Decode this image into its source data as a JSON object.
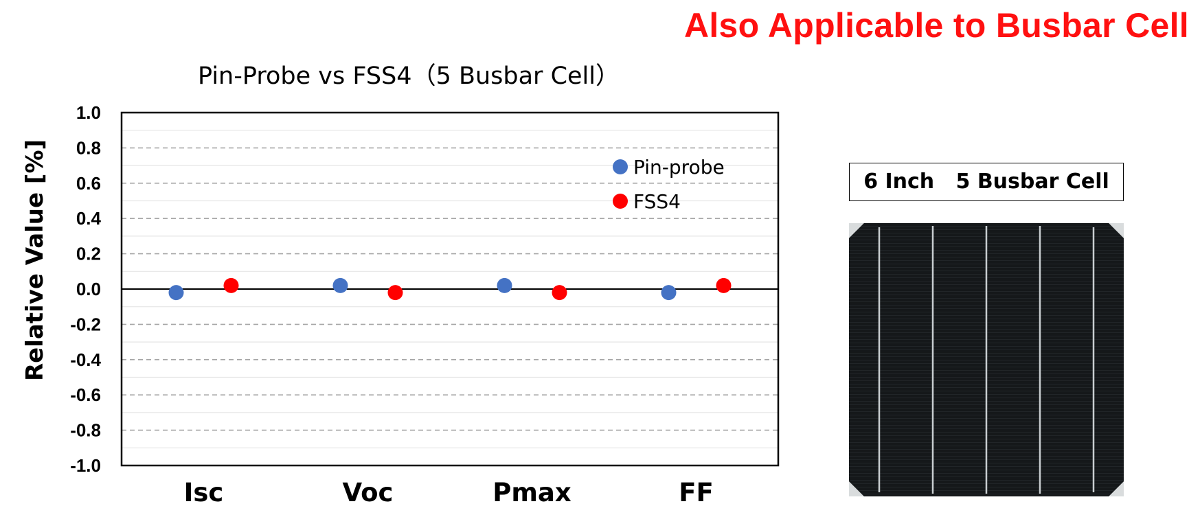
{
  "headline": "Also Applicable to Busbar Cell",
  "cell_label": "6 Inch   5 Busbar Cell",
  "colors": {
    "headline": "#ff1010",
    "pin_probe": "#4472c4",
    "fss4": "#ff0000",
    "cell_background": "#141719",
    "busbar": "#c8cdd0"
  },
  "chart_data": {
    "type": "scatter",
    "title": "Pin-Probe vs FSS4（5 Busbar Cell）",
    "xlabel": "",
    "ylabel": "Relative Value [%]",
    "categories": [
      "Isc",
      "Voc",
      "Pmax",
      "FF"
    ],
    "ylim": [
      -1.0,
      1.0
    ],
    "yticks": [
      1.0,
      0.8,
      0.6,
      0.4,
      0.2,
      0.0,
      -0.2,
      -0.4,
      -0.6,
      -0.8,
      -1.0
    ],
    "ytick_labels": [
      "1.0",
      "0.8",
      "0.6",
      "0.4",
      "0.2",
      "0.0",
      "-0.2",
      "-0.4",
      "-0.6",
      "-0.8",
      "-1.0"
    ],
    "grid": "dashed major gridlines every 0.2, light minor gridlines every 0.1",
    "legend_position": "top-right",
    "series": [
      {
        "name": "Pin-probe",
        "color": "#4472c4",
        "values": [
          -0.02,
          0.02,
          0.02,
          -0.02
        ]
      },
      {
        "name": "FSS4",
        "color": "#ff0000",
        "values": [
          0.02,
          -0.02,
          -0.02,
          0.02
        ]
      }
    ]
  }
}
